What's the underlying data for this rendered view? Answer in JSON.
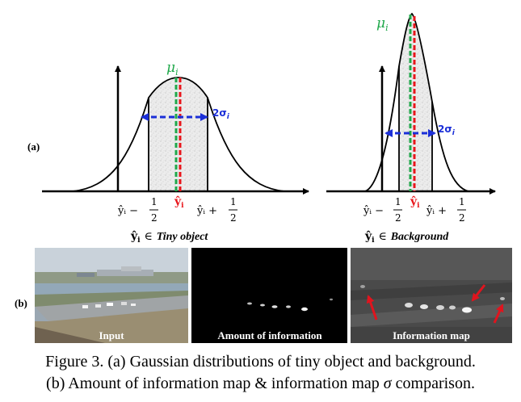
{
  "figure": {
    "panel_a_tag": "(a)",
    "panel_b_tag": "(b)",
    "left_plot": {
      "mu_label": "μ",
      "mu_sub": "i",
      "sigma_label": "2σ",
      "sigma_sub": "i",
      "yhat_label": "ŷ",
      "yhat_sub": "i",
      "lower_bound": "ŷᵢ −",
      "upper_bound": "ŷᵢ +",
      "frac_num": "1",
      "frac_den": "2",
      "subtitle_math": "ŷ",
      "subtitle_sub": "i",
      "subtitle_in": "∈",
      "subtitle_text": "Tiny object"
    },
    "right_plot": {
      "mu_label": "μ",
      "mu_sub": "i",
      "sigma_label": "2σ",
      "sigma_sub": "i",
      "yhat_label": "ŷ",
      "yhat_sub": "i",
      "lower_bound": "ŷᵢ −",
      "upper_bound": "ŷᵢ +",
      "frac_num": "1",
      "frac_den": "2",
      "subtitle_math": "ŷ",
      "subtitle_sub": "i",
      "subtitle_in": "∈",
      "subtitle_text": "Background"
    },
    "images": [
      {
        "label": "Input"
      },
      {
        "label": "Amount of information"
      },
      {
        "label": "Information map"
      }
    ],
    "colors": {
      "mu_green": "#1fa84a",
      "center_red": "#e8161b",
      "sigma_blue": "#1b2fd8",
      "arrow_red": "#e0141e"
    }
  },
  "caption": {
    "line1": "Figure 3. (a) Gaussian distributions of tiny object and background.",
    "line2_pre": "(b) Amount of information map & information map ",
    "line2_sigma": "σ",
    "line2_post": " comparison."
  }
}
